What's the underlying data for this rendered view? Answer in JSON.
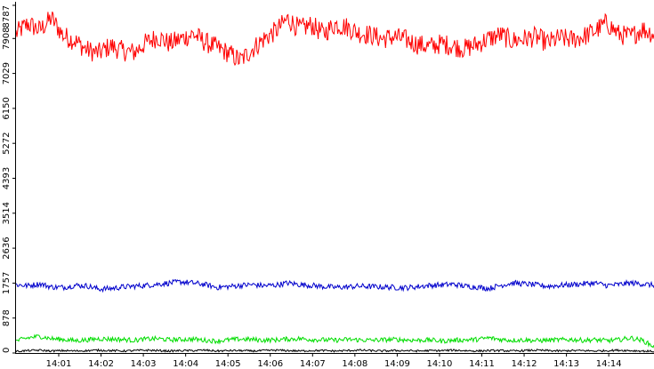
{
  "chart_data": {
    "type": "line",
    "title": "",
    "xlabel": "",
    "ylabel": "",
    "ylim": [
      0,
      8787
    ],
    "y_ticks": [
      "0",
      "878",
      "1757",
      "2636",
      "3514",
      "4393",
      "5272",
      "6150",
      "7029",
      "7908",
      "8787"
    ],
    "x_ticks": [
      "14:01",
      "14:02",
      "14:03",
      "14:04",
      "14:05",
      "14:06",
      "14:07",
      "14:08",
      "14:09",
      "14:10",
      "14:11",
      "14:12",
      "14:13",
      "14:14"
    ],
    "grid": false,
    "legend": "none",
    "series": [
      {
        "color": "#ff0000",
        "values": [
          8030,
          8280,
          8120,
          8420,
          7980,
          7850,
          7620,
          7540,
          7720,
          7600,
          7560,
          7800,
          7950,
          7780,
          7900,
          8020,
          7820,
          7680,
          7540,
          7350,
          7640,
          7900,
          8100,
          8400,
          8150,
          8250,
          8030,
          8260,
          8200,
          8050,
          8000,
          7900,
          7950,
          7880,
          7760,
          7700,
          7780,
          7720,
          7650,
          7760,
          7900,
          8000,
          7850,
          7900,
          7950,
          7800,
          7920,
          7880,
          7950,
          8100,
          8300,
          8020,
          7950,
          8150,
          8020
        ]
      },
      {
        "color": "#0000cc",
        "values": [
          1720,
          1690,
          1740,
          1660,
          1650,
          1700,
          1690,
          1610,
          1620,
          1660,
          1680,
          1700,
          1730,
          1760,
          1790,
          1760,
          1720,
          1650,
          1670,
          1700,
          1720,
          1690,
          1710,
          1760,
          1720,
          1700,
          1670,
          1650,
          1660,
          1680,
          1670,
          1660,
          1650,
          1640,
          1670,
          1700,
          1710,
          1730,
          1680,
          1660,
          1620,
          1700,
          1760,
          1740,
          1710,
          1680,
          1700,
          1720,
          1740,
          1760,
          1700,
          1720,
          1760,
          1740,
          1700
        ]
      },
      {
        "color": "#00dd00",
        "values": [
          300,
          380,
          420,
          360,
          340,
          310,
          330,
          360,
          350,
          340,
          320,
          350,
          360,
          330,
          340,
          350,
          320,
          300,
          330,
          350,
          340,
          320,
          330,
          350,
          360,
          340,
          330,
          320,
          340,
          330,
          320,
          330,
          340,
          330,
          320,
          330,
          300,
          320,
          330,
          340,
          380,
          340,
          320,
          330,
          310,
          320,
          330,
          340,
          320,
          330,
          310,
          330,
          380,
          320,
          160
        ]
      },
      {
        "color": "#000000",
        "values": [
          40,
          60,
          70,
          50,
          60,
          50,
          60,
          70,
          60,
          50,
          60,
          70,
          60,
          50,
          60,
          60,
          70,
          50,
          60,
          60,
          50,
          60,
          70,
          60,
          50,
          60,
          60,
          50,
          60,
          70,
          60,
          50,
          60,
          60,
          50,
          60,
          60,
          70,
          60,
          50,
          60,
          60,
          50,
          60,
          70,
          60,
          50,
          60,
          60,
          50,
          60,
          70,
          60,
          50,
          40
        ]
      }
    ]
  }
}
